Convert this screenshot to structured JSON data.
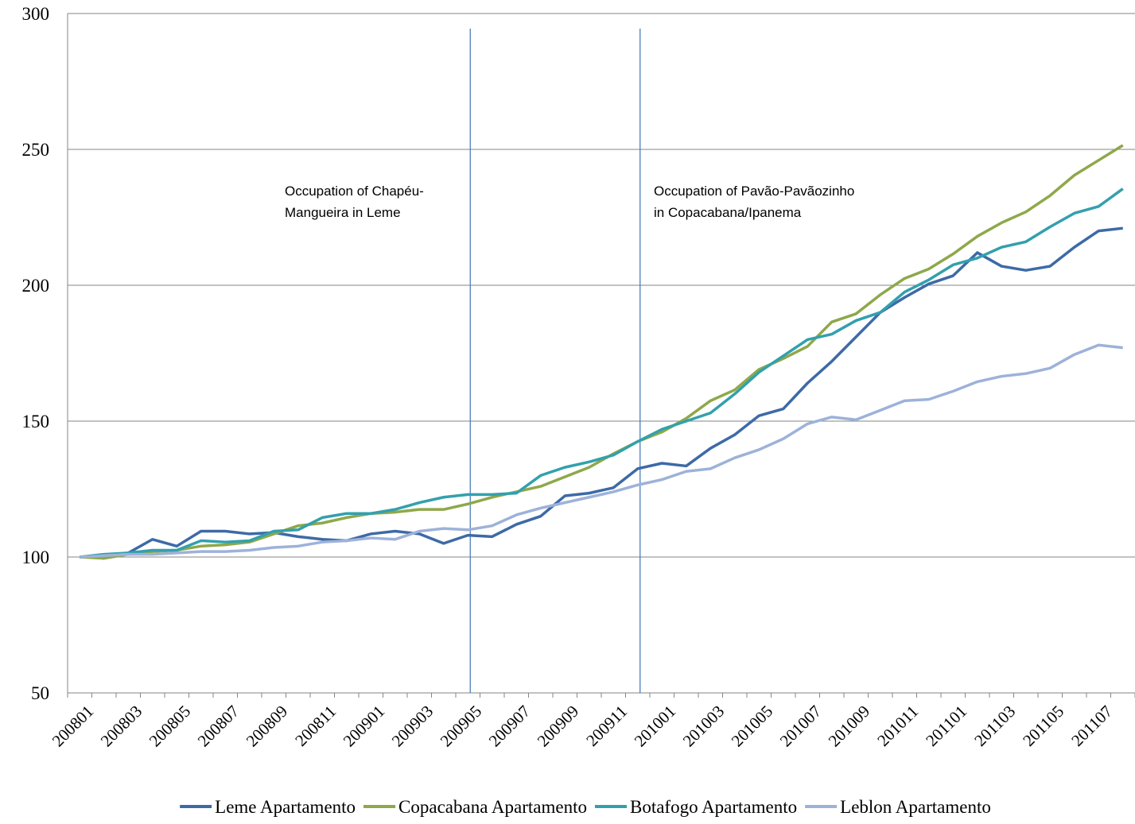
{
  "chart_data": {
    "type": "line",
    "categories": [
      "200801",
      null,
      "200803",
      null,
      "200805",
      null,
      "200807",
      null,
      "200809",
      null,
      "200811",
      null,
      "200901",
      null,
      "200903",
      null,
      "200905",
      null,
      "200907",
      null,
      "200909",
      null,
      "200911",
      null,
      "201001",
      null,
      "201003",
      null,
      "201005",
      null,
      "201007",
      null,
      "201009",
      null,
      "201011",
      null,
      "201101",
      null,
      "201103",
      null,
      "201105",
      null,
      "201107",
      null
    ],
    "series": [
      {
        "name": "Leme Apartamento",
        "color": "#3d6aa6",
        "values": [
          100,
          100.5,
          101.5,
          106.5,
          104,
          109.5,
          109.5,
          108.5,
          109,
          107.5,
          106.5,
          106,
          108.5,
          109.5,
          108.5,
          105,
          108,
          107.5,
          112,
          115,
          122.5,
          123.5,
          125.5,
          132.5,
          134.5,
          133.5,
          140,
          145,
          152,
          154.5,
          164,
          172,
          181,
          190,
          195.5,
          200.5,
          203.5,
          212,
          207,
          205.5,
          207,
          214,
          220,
          221
        ]
      },
      {
        "name": "Copacabana Apartamento",
        "color": "#8ea84a",
        "values": [
          100,
          99.5,
          101,
          102,
          102.5,
          104,
          104.5,
          105.5,
          108.5,
          111.5,
          112.5,
          114.5,
          116,
          116.5,
          117.5,
          117.5,
          119.5,
          122,
          124,
          126,
          129.5,
          133,
          138,
          142.5,
          146,
          151,
          157.5,
          161.5,
          169,
          173,
          177.5,
          186.5,
          189.5,
          196.5,
          202.5,
          206,
          211.5,
          218,
          223,
          227,
          233,
          240.5,
          246,
          251.5
        ]
      },
      {
        "name": "Botafogo Apartamento",
        "color": "#33a0ad",
        "values": [
          100,
          101,
          101.5,
          102.5,
          102.5,
          106,
          105.5,
          106,
          109.5,
          110,
          114.5,
          116,
          116,
          117.5,
          120,
          122,
          123,
          123,
          123.5,
          130,
          133,
          135,
          137.5,
          142.5,
          147,
          150,
          153,
          160,
          168,
          174,
          180,
          182,
          187,
          190,
          197.5,
          202,
          207.5,
          210,
          214,
          216,
          221.5,
          226.5,
          229,
          235.5
        ]
      },
      {
        "name": "Leblon Apartamento",
        "color": "#9db2d9",
        "values": [
          100,
          100.5,
          101,
          101,
          101.5,
          102,
          102,
          102.5,
          103.5,
          104,
          105.5,
          106,
          107,
          106.5,
          109.5,
          110.5,
          110,
          111.5,
          115.5,
          118,
          120,
          122,
          124,
          126.5,
          128.5,
          131.5,
          132.5,
          136.5,
          139.5,
          143.5,
          149,
          151.5,
          150.5,
          154,
          157.5,
          158,
          161,
          164.5,
          166.5,
          167.5,
          169.5,
          174.5,
          178,
          177
        ]
      }
    ],
    "ylim": [
      50,
      300
    ],
    "yticks": [
      50,
      100,
      150,
      200,
      250,
      300
    ],
    "grid": true,
    "annotations": [
      {
        "lines": [
          "Occupation of Chapéu-",
          "Mangueira in Leme"
        ]
      },
      {
        "lines": [
          "Occupation of Pavão-Pavãozinho",
          "in Copacabana/Ipanema"
        ]
      }
    ],
    "legend": "bottom"
  }
}
